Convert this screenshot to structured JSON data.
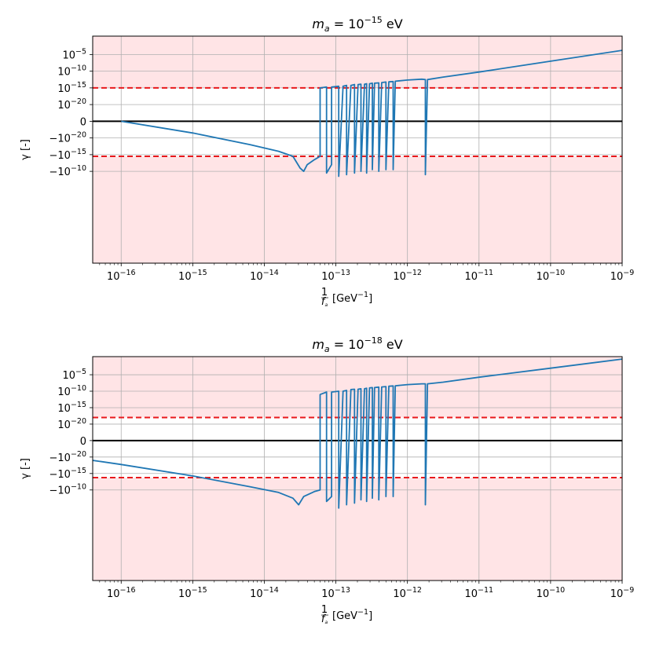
{
  "chart_data": [
    {
      "type": "line",
      "title": "m_a = 10^-15 eV",
      "title_parts": {
        "var": "m",
        "sub": "a",
        "eq": " = 10",
        "exp": "−15",
        "unit": " eV"
      },
      "xlabel": "1/f_a [GeV^-1]",
      "xlabel_parts": {
        "num": "1",
        "den": "f",
        "den_sub": "a",
        "unit": "[GeV",
        "unit_exp": "−1",
        "close": "]"
      },
      "ylabel": "γ [-]",
      "x_scale": "log",
      "xlim": [
        4e-17,
        1e-09
      ],
      "y_scale": "symlog",
      "ylim_decades": [
        -6,
        7.6
      ],
      "x_ticks": [
        {
          "exp": -16,
          "label_base": "10",
          "label_exp": "−16"
        },
        {
          "exp": -15,
          "label_base": "10",
          "label_exp": "−15"
        },
        {
          "exp": -14,
          "label_base": "10",
          "label_exp": "−14"
        },
        {
          "exp": -13,
          "label_base": "10",
          "label_exp": "−13"
        },
        {
          "exp": -12,
          "label_base": "10",
          "label_exp": "−12"
        },
        {
          "exp": -11,
          "label_base": "10",
          "label_exp": "−11"
        },
        {
          "exp": -10,
          "label_base": "10",
          "label_exp": "−10"
        },
        {
          "exp": -9,
          "label_base": "10",
          "label_exp": "−9"
        }
      ],
      "y_ticks": [
        {
          "s": 6.5,
          "label_base": "10",
          "label_exp": "−5"
        },
        {
          "s": 5.5,
          "label_base": "10",
          "label_exp": "−10"
        },
        {
          "s": 4.5,
          "label_base": "10",
          "label_exp": "−15"
        },
        {
          "s": 3.5,
          "label_base": "10",
          "label_exp": "−20"
        },
        {
          "s": 2.5,
          "label_base": "0",
          "label_exp": ""
        },
        {
          "s": 1.5,
          "label_base": "−10",
          "label_exp": "−20"
        },
        {
          "s": 0.5,
          "label_base": "−10",
          "label_exp": "−15"
        },
        {
          "s": -0.5,
          "label_base": "−10",
          "label_exp": "−10"
        }
      ],
      "threshold_upper": 4.5,
      "threshold_lower": 0.4,
      "zero_line": 2.5,
      "shaded_bands": [
        [
          4.5,
          7.6
        ],
        [
          -6,
          0.4
        ]
      ],
      "series": [
        {
          "name": "γ",
          "points": [
            [
              -16,
              2.5
            ],
            [
              -15,
              1.8
            ],
            [
              -14.2,
              1.1
            ],
            [
              -13.8,
              0.7
            ],
            [
              -13.6,
              0.4
            ],
            [
              -13.5,
              -0.3
            ],
            [
              -13.45,
              -0.5
            ],
            [
              -13.4,
              -0.1
            ],
            [
              -13.3,
              0.2
            ],
            [
              -13.22,
              0.4
            ],
            [
              -13.22,
              4.5
            ],
            [
              -13.13,
              4.55
            ],
            [
              -13.13,
              -0.6
            ],
            [
              -13.06,
              -0.1
            ],
            [
              -13.06,
              4.55
            ],
            [
              -12.96,
              4.6
            ],
            [
              -12.96,
              -0.8
            ],
            [
              -12.9,
              4.6
            ],
            [
              -12.85,
              4.65
            ],
            [
              -12.85,
              -0.7
            ],
            [
              -12.79,
              4.65
            ],
            [
              -12.74,
              4.7
            ],
            [
              -12.74,
              -0.6
            ],
            [
              -12.69,
              4.7
            ],
            [
              -12.65,
              4.72
            ],
            [
              -12.65,
              -0.5
            ],
            [
              -12.6,
              4.72
            ],
            [
              -12.57,
              4.75
            ],
            [
              -12.57,
              -0.6
            ],
            [
              -12.53,
              4.75
            ],
            [
              -12.49,
              4.78
            ],
            [
              -12.49,
              -0.4
            ],
            [
              -12.46,
              4.78
            ],
            [
              -12.4,
              4.8
            ],
            [
              -12.4,
              -0.5
            ],
            [
              -12.36,
              4.82
            ],
            [
              -12.3,
              4.85
            ],
            [
              -12.3,
              -0.4
            ],
            [
              -12.26,
              4.86
            ],
            [
              -12.2,
              4.88
            ],
            [
              -12.2,
              -0.4
            ],
            [
              -12.17,
              4.9
            ],
            [
              -12.0,
              4.97
            ],
            [
              -11.8,
              5.02
            ],
            [
              -11.75,
              5.0
            ],
            [
              -11.75,
              -0.7
            ],
            [
              -11.72,
              5.0
            ],
            [
              -11.5,
              5.15
            ],
            [
              -11.0,
              5.45
            ],
            [
              -10.0,
              6.1
            ],
            [
              -9.0,
              6.75
            ]
          ]
        }
      ]
    },
    {
      "type": "line",
      "title": "m_a = 10^-18 eV",
      "title_parts": {
        "var": "m",
        "sub": "a",
        "eq": " = 10",
        "exp": "−18",
        "unit": " eV"
      },
      "xlabel": "1/f_a [GeV^-1]",
      "xlabel_parts": {
        "num": "1",
        "den": "f",
        "den_sub": "a",
        "unit": "[GeV",
        "unit_exp": "−1",
        "close": "]"
      },
      "ylabel": "γ [-]",
      "x_scale": "log",
      "xlim": [
        4e-17,
        1e-09
      ],
      "y_scale": "symlog",
      "ylim_decades": [
        -6,
        7.6
      ],
      "x_ticks": [
        {
          "exp": -16,
          "label_base": "10",
          "label_exp": "−16"
        },
        {
          "exp": -15,
          "label_base": "10",
          "label_exp": "−15"
        },
        {
          "exp": -14,
          "label_base": "10",
          "label_exp": "−14"
        },
        {
          "exp": -13,
          "label_base": "10",
          "label_exp": "−13"
        },
        {
          "exp": -12,
          "label_base": "10",
          "label_exp": "−12"
        },
        {
          "exp": -11,
          "label_base": "10",
          "label_exp": "−11"
        },
        {
          "exp": -10,
          "label_base": "10",
          "label_exp": "−10"
        },
        {
          "exp": -9,
          "label_base": "10",
          "label_exp": "−9"
        }
      ],
      "y_ticks": [
        {
          "s": 6.5,
          "label_base": "10",
          "label_exp": "−5"
        },
        {
          "s": 5.5,
          "label_base": "10",
          "label_exp": "−10"
        },
        {
          "s": 4.5,
          "label_base": "10",
          "label_exp": "−15"
        },
        {
          "s": 3.5,
          "label_base": "10",
          "label_exp": "−20"
        },
        {
          "s": 2.5,
          "label_base": "0",
          "label_exp": ""
        },
        {
          "s": 1.5,
          "label_base": "−10",
          "label_exp": "−20"
        },
        {
          "s": 0.5,
          "label_base": "−10",
          "label_exp": "−15"
        },
        {
          "s": -0.5,
          "label_base": "−10",
          "label_exp": "−10"
        }
      ],
      "threshold_upper": 3.9,
      "threshold_lower": 0.25,
      "zero_line": 2.5,
      "shaded_bands": [
        [
          3.9,
          7.6
        ],
        [
          -6,
          0.25
        ]
      ],
      "series": [
        {
          "name": "γ",
          "points": [
            [
              -16.4,
              1.3
            ],
            [
              -16,
              1.05
            ],
            [
              -15,
              0.35
            ],
            [
              -14.2,
              -0.3
            ],
            [
              -13.8,
              -0.65
            ],
            [
              -13.6,
              -1.0
            ],
            [
              -13.52,
              -1.4
            ],
            [
              -13.45,
              -0.9
            ],
            [
              -13.3,
              -0.6
            ],
            [
              -13.22,
              -0.5
            ],
            [
              -13.22,
              5.3
            ],
            [
              -13.13,
              5.45
            ],
            [
              -13.13,
              -1.2
            ],
            [
              -13.06,
              -0.9
            ],
            [
              -13.06,
              5.45
            ],
            [
              -12.96,
              5.5
            ],
            [
              -12.96,
              -1.6
            ],
            [
              -12.9,
              5.5
            ],
            [
              -12.85,
              5.55
            ],
            [
              -12.85,
              -1.4
            ],
            [
              -12.79,
              5.6
            ],
            [
              -12.74,
              5.62
            ],
            [
              -12.74,
              -1.3
            ],
            [
              -12.69,
              5.62
            ],
            [
              -12.65,
              5.65
            ],
            [
              -12.65,
              -1.1
            ],
            [
              -12.6,
              5.65
            ],
            [
              -12.57,
              5.68
            ],
            [
              -12.57,
              -1.2
            ],
            [
              -12.53,
              5.7
            ],
            [
              -12.49,
              5.72
            ],
            [
              -12.49,
              -1.0
            ],
            [
              -12.46,
              5.72
            ],
            [
              -12.4,
              5.75
            ],
            [
              -12.4,
              -1.1
            ],
            [
              -12.36,
              5.76
            ],
            [
              -12.3,
              5.78
            ],
            [
              -12.3,
              -0.9
            ],
            [
              -12.26,
              5.8
            ],
            [
              -12.2,
              5.82
            ],
            [
              -12.2,
              -0.9
            ],
            [
              -12.17,
              5.83
            ],
            [
              -12.0,
              5.9
            ],
            [
              -11.8,
              5.95
            ],
            [
              -11.75,
              5.95
            ],
            [
              -11.75,
              -1.4
            ],
            [
              -11.72,
              5.95
            ],
            [
              -11.5,
              6.05
            ],
            [
              -11.0,
              6.35
            ],
            [
              -10.0,
              6.9
            ],
            [
              -9.0,
              7.45
            ]
          ]
        }
      ]
    }
  ]
}
